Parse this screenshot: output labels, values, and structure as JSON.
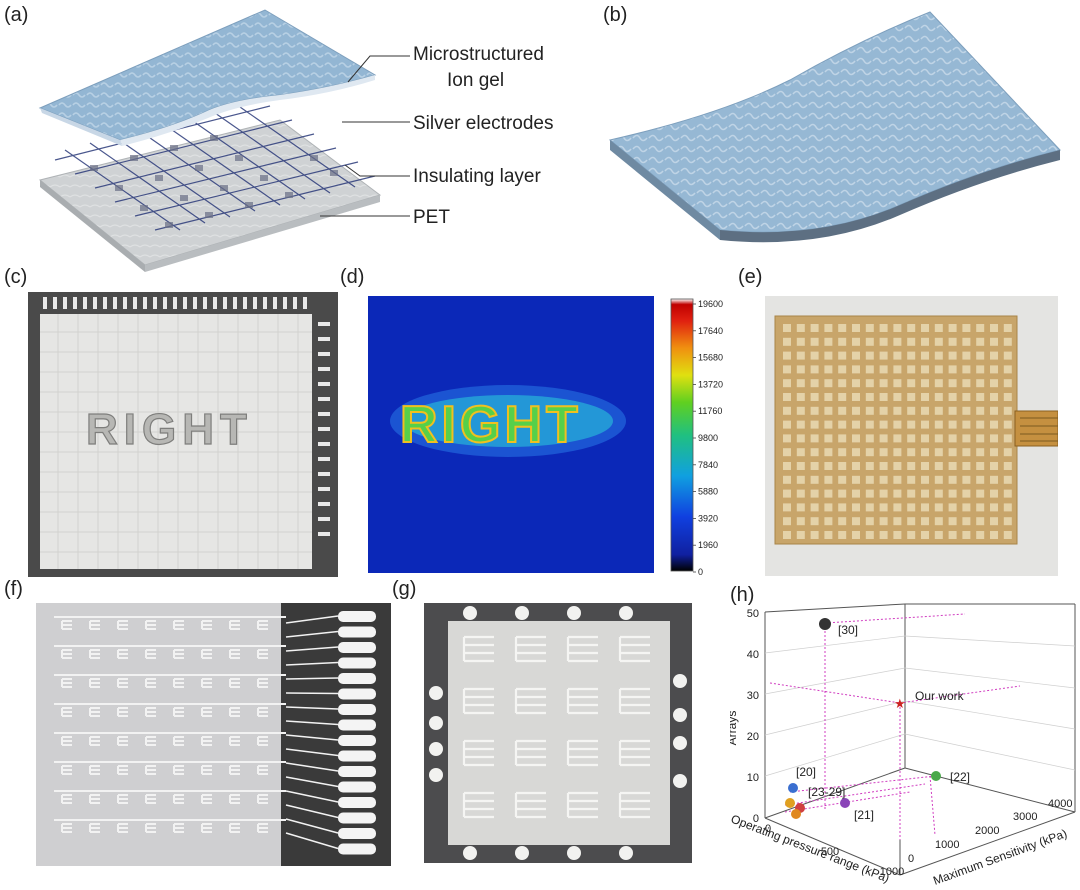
{
  "panels": {
    "a": "(a)",
    "b": "(b)",
    "c": "(c)",
    "d": "(d)",
    "e": "(e)",
    "f": "(f)",
    "g": "(g)",
    "h": "(h)"
  },
  "layers": {
    "ion_gel_line1": "Microstructured",
    "ion_gel_line2": "Ion gel",
    "silver": "Silver electrodes",
    "insulating": "Insulating layer",
    "pet": "PET"
  },
  "photo_c": {
    "text": "RIGHT"
  },
  "heatmap": {
    "text": "RIGHT",
    "colorbar_ticks": [
      "19600",
      "17640",
      "15680",
      "13720",
      "11760",
      "9800",
      "7840",
      "5880",
      "3920",
      "1960",
      "0"
    ]
  },
  "colors": {
    "ion_gel": "#8fb2cf",
    "heatmap_bg": "#0b28b8",
    "pet": "#c9ccce",
    "sensor_array": "#c8a56a"
  },
  "chart_data": {
    "type": "scatter",
    "projection": "3d",
    "xlabel": "Operating pressure range (kPa)",
    "ylabel": "Maximum Sensitivity (kPa)",
    "zlabel": "Arrays",
    "x_ticks": [
      "0",
      "500",
      "1000"
    ],
    "y_ticks": [
      "0",
      "1000",
      "2000",
      "3000",
      "4000"
    ],
    "z_ticks": [
      "0",
      "10",
      "20",
      "30",
      "40",
      "50"
    ],
    "points": [
      {
        "label": "[30]",
        "z": 48,
        "color": "#333333"
      },
      {
        "label": "Our work",
        "z": 30,
        "color": "#cc2222",
        "marker": "star"
      },
      {
        "label": "[20]",
        "z": 8,
        "color": "#3a6fd0"
      },
      {
        "label": "[22]",
        "z": 8,
        "color": "#4aa84a"
      },
      {
        "label": "[23-29]",
        "z": 3,
        "color": "#e0a020"
      },
      {
        "label": "[21]",
        "z": 2,
        "color": "#8a44b8"
      }
    ]
  }
}
